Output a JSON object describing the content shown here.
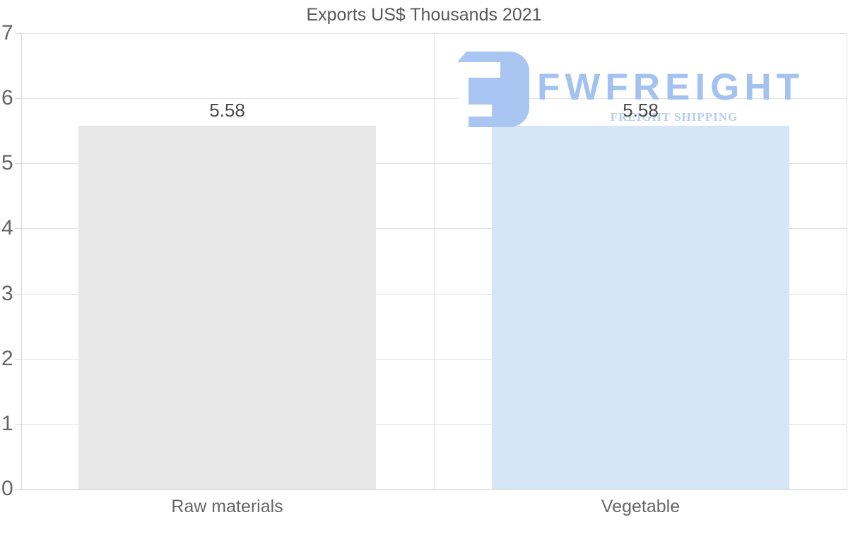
{
  "chart_data": {
    "type": "bar",
    "title": "Exports US$ Thousands 2021",
    "categories": [
      "Raw materials",
      "Vegetable"
    ],
    "values": [
      5.58,
      5.58
    ],
    "value_labels": [
      "5.58",
      "5.58"
    ],
    "bar_colors": [
      "#e7e7e7",
      "#d6e5f7"
    ],
    "ylim": [
      0,
      7
    ],
    "yticks": [
      0,
      1,
      2,
      3,
      4,
      5,
      6,
      7
    ],
    "ytick_labels": [
      "0",
      "1",
      "2",
      "3",
      "4",
      "5",
      "6",
      "7"
    ],
    "xlabel": "",
    "ylabel": "",
    "grid": true,
    "legend": false
  },
  "watermark": {
    "brand": "FWFREIGHT",
    "tagline": "FREIGHT SHIPPING",
    "logo_color": "#a9c5f1",
    "brand_color": "#a3c2f0",
    "tagline_color": "#b9cdf3"
  },
  "colors": {
    "background": "#ffffff",
    "title": "#595959",
    "tick_label": "#666666",
    "category_label": "#666666",
    "value_label": "#4a4a4a",
    "gridline": "#e2e2e2",
    "baseline": "#c9c9c9",
    "axis_line": "#d9d9d9"
  }
}
